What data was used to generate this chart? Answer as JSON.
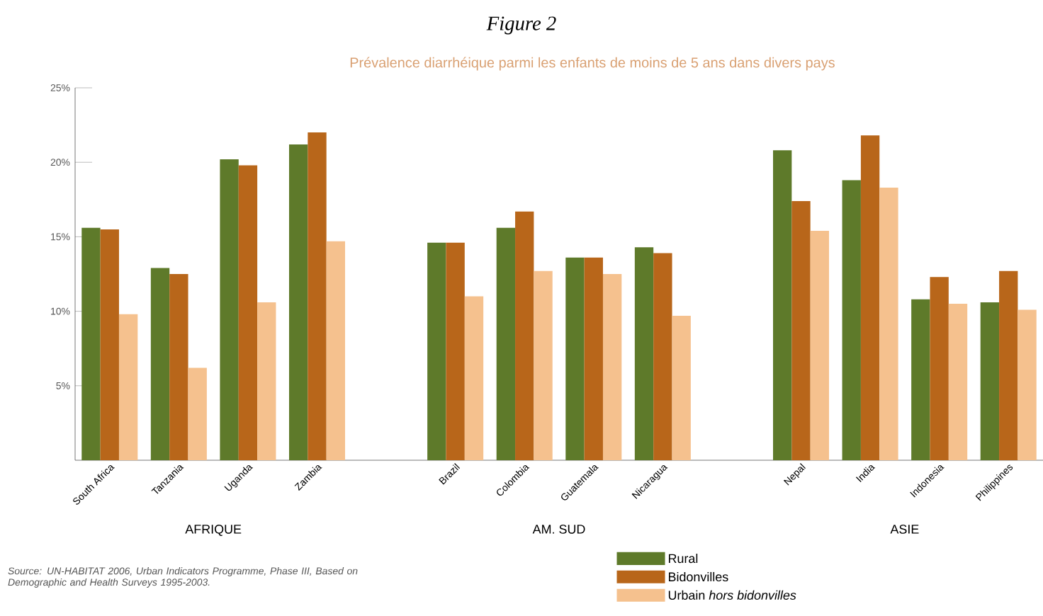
{
  "chart_data": {
    "type": "bar",
    "title": "Figure 2",
    "subtitle": "Prévalence diarrhéique parmi les enfants de moins de 5 ans dans divers pays",
    "categories": [
      "South Africa",
      "Tanzania",
      "Uganda",
      "Zambia",
      null,
      "Brazil",
      "Colombia",
      "Guatemala",
      "Nicaragua",
      null,
      "Nepal",
      "India",
      "Indonesia",
      "Philippines"
    ],
    "series": [
      {
        "name": "Rural",
        "color": "#5e7a2a",
        "values": [
          15.6,
          12.9,
          20.2,
          21.2,
          null,
          14.6,
          15.6,
          13.6,
          14.3,
          null,
          20.8,
          18.8,
          10.8,
          10.6
        ]
      },
      {
        "name": "Bidonvilles",
        "color": "#b8661a",
        "values": [
          15.5,
          12.5,
          19.8,
          22.0,
          null,
          14.6,
          16.7,
          13.6,
          13.9,
          null,
          17.4,
          21.8,
          12.3,
          12.7
        ]
      },
      {
        "name": "Urbain *hors bidonvilles*",
        "color": "#f5c18e",
        "values": [
          9.8,
          6.2,
          10.6,
          14.7,
          null,
          11.0,
          12.7,
          12.5,
          9.7,
          null,
          15.4,
          18.3,
          10.5,
          10.1
        ]
      }
    ],
    "ylim": [
      0,
      25
    ],
    "yticks": [
      {
        "value": 5,
        "label": "5%"
      },
      {
        "value": 10,
        "label": "10%"
      },
      {
        "value": 15,
        "label": "15%"
      },
      {
        "value": 20,
        "label": "20%"
      },
      {
        "value": 25,
        "label": "25%"
      }
    ],
    "legend": "bottom",
    "annotations": [
      "AFRIQUE",
      "AM. SUD",
      "ASIE",
      "Source: UN-HABITAT 2006, Urban Indicators Programme, Phase III, Based on Demographic and Health Surveys 1995-2003."
    ]
  }
}
